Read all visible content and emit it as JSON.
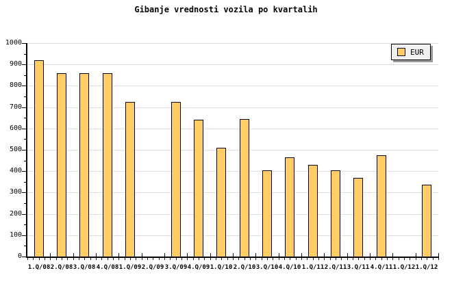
{
  "window": {
    "background": "#FFFFFF"
  },
  "chart_data": {
    "type": "bar",
    "title": "Gibanje vrednosti vozila po kvartalih",
    "categories": [
      "1.Q/08",
      "2.Q/08",
      "3.Q/08",
      "4.Q/08",
      "1.Q/09",
      "2.Q/09",
      "3.Q/09",
      "4.Q/09",
      "1.Q/10",
      "2.Q/10",
      "3.Q/10",
      "4.Q/10",
      "1.Q/11",
      "2.Q/11",
      "3.Q/11",
      "4.Q/11",
      "1.Q/12",
      "1.Q/12"
    ],
    "values": [
      920,
      860,
      860,
      860,
      725,
      null,
      725,
      640,
      510,
      645,
      405,
      465,
      430,
      405,
      370,
      475,
      null,
      335
    ],
    "series_name": "EUR",
    "xlabel": "",
    "ylabel": "",
    "ylim": [
      0,
      1000
    ],
    "y_tick_step": 100,
    "y_minor_tick_step": 50,
    "y_tick_labels": [
      "0",
      "100",
      "200",
      "300",
      "400",
      "500",
      "600",
      "700",
      "800",
      "900",
      "1000"
    ],
    "grid": "horizontal",
    "legend": {
      "label": "EUR",
      "position": "top-right"
    },
    "colors": {
      "bar_fill": "#FFCC66",
      "bar_border": "#000000",
      "grid": "#DDDDDD",
      "axis": "#000000",
      "text": "#000000",
      "legend_bg": "#F0F0F0",
      "legend_shadow": "#999999"
    }
  }
}
